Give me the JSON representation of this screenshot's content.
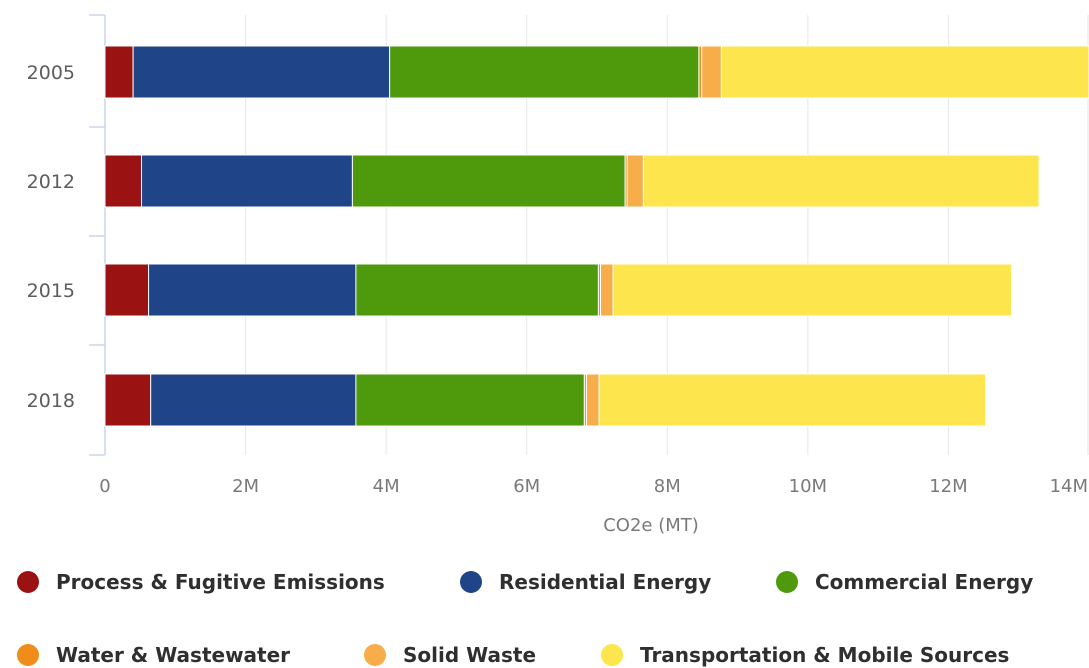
{
  "chart_data": {
    "type": "bar",
    "orientation": "horizontal",
    "stacked": true,
    "categories": [
      "2005",
      "2012",
      "2015",
      "2018"
    ],
    "series": [
      {
        "name": "Process & Fugitive Emissions",
        "color": "#9b1212",
        "values": [
          400000,
          520000,
          620000,
          650000
        ]
      },
      {
        "name": "Residential Energy",
        "color": "#1f4488",
        "values": [
          3650000,
          3000000,
          2950000,
          2920000
        ]
      },
      {
        "name": "Commercial Energy",
        "color": "#4e9a0c",
        "values": [
          4400000,
          3880000,
          3450000,
          3250000
        ]
      },
      {
        "name": "Water & Wastewater",
        "color": "#f08c1a",
        "values": [
          40000,
          30000,
          30000,
          30000
        ]
      },
      {
        "name": "Solid Waste",
        "color": "#f6ad4a",
        "values": [
          280000,
          230000,
          180000,
          180000
        ]
      },
      {
        "name": "Transportation & Mobile Sources",
        "color": "#fde54d",
        "values": [
          6200000,
          5630000,
          5670000,
          5500000
        ]
      }
    ],
    "xlabel": "CO2e (MT)",
    "ylabel": "",
    "xlim": [
      0,
      14000000
    ],
    "xticks": [
      0,
      2000000,
      4000000,
      6000000,
      8000000,
      10000000,
      12000000,
      14000000
    ],
    "xtick_labels": [
      "0",
      "2M",
      "4M",
      "6M",
      "8M",
      "10M",
      "12M",
      "14M"
    ],
    "grid": true,
    "legend_position": "bottom"
  }
}
